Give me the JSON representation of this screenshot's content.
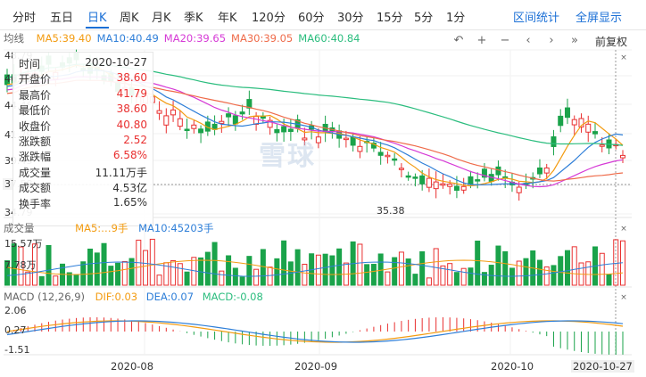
{
  "tabs": [
    {
      "label": "分时"
    },
    {
      "label": "五日"
    },
    {
      "label": "日K"
    },
    {
      "label": "周K"
    },
    {
      "label": "月K"
    },
    {
      "label": "季K"
    },
    {
      "label": "年K"
    },
    {
      "label": "120分"
    },
    {
      "label": "60分"
    },
    {
      "label": "30分"
    },
    {
      "label": "15分"
    },
    {
      "label": "5分"
    },
    {
      "label": "1分"
    }
  ],
  "active_tab": "日K",
  "right_tabs": [
    {
      "label": "区间统计"
    },
    {
      "label": "全屏显示"
    }
  ],
  "kline": {
    "name": "均线",
    "ma": [
      {
        "label": "MA5:39.40",
        "color": "#f39c12"
      },
      {
        "label": "MA10:40.49",
        "color": "#2f7fd8"
      },
      {
        "label": "MA20:39.65",
        "color": "#d63ad6"
      },
      {
        "label": "MA30:39.05",
        "color": "#ef6b4a"
      },
      {
        "label": "MA60:40.84",
        "color": "#2bbd7e"
      }
    ],
    "fuquan": "前复权",
    "y_ticks": [
      "48.79",
      "46.13",
      "44.46",
      "41.79",
      "39.45",
      "37.58",
      "34.79"
    ],
    "min_marker": "35.38",
    "current_price": "37.58"
  },
  "tooltip": [
    {
      "k": "时间",
      "v": "2020-10-27",
      "up": false
    },
    {
      "k": "开盘价",
      "v": "38.60",
      "up": true
    },
    {
      "k": "最高价",
      "v": "41.79",
      "up": true
    },
    {
      "k": "最低价",
      "v": "38.60",
      "up": true
    },
    {
      "k": "收盘价",
      "v": "40.80",
      "up": true
    },
    {
      "k": "涨跌额",
      "v": "2.52",
      "up": true
    },
    {
      "k": "涨跌幅",
      "v": "6.58%",
      "up": true
    },
    {
      "k": "成交量",
      "v": "11.11万手",
      "up": false
    },
    {
      "k": "成交额",
      "v": "4.53亿",
      "up": false
    },
    {
      "k": "换手率",
      "v": "1.65%",
      "up": false
    }
  ],
  "volume": {
    "name": "成交量",
    "ma5_label": "MA5:…9手",
    "ma10_label": "MA10:45203手",
    "y_ticks": [
      "15.57万",
      "7.78万"
    ]
  },
  "macd": {
    "name": "MACD (12,26,9)",
    "dif_label": "DIF:0.03",
    "dea_label": "DEA:0.07",
    "macd_label": "MACD:-0.08",
    "dif_color": "#f39c12",
    "dea_color": "#2f7fd8",
    "y_ticks": [
      "2.06",
      "0.27",
      "-1.51"
    ]
  },
  "dates": [
    "2020-08",
    "2020-09",
    "2020-10",
    "2020-10-27"
  ],
  "watermark": "雪球",
  "colors": {
    "up": "#e93030",
    "down": "#1aa34a",
    "accent": "#1a6fd6"
  }
}
